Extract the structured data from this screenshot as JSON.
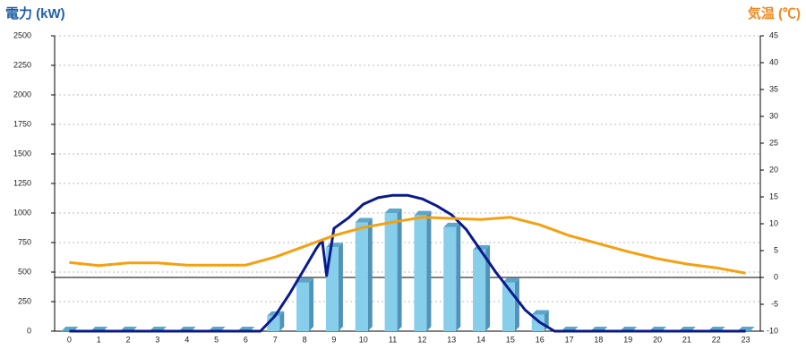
{
  "chart_data": {
    "type": "combo",
    "title": "電力 (kW)",
    "y2_title": "気温 (℃)",
    "title_color": "#1f5fa8",
    "y2_title_color": "#f08a24",
    "categories": [
      "0",
      "1",
      "2",
      "3",
      "4",
      "5",
      "6",
      "7",
      "8",
      "9",
      "10",
      "11",
      "12",
      "13",
      "14",
      "15",
      "16",
      "17",
      "18",
      "19",
      "20",
      "21",
      "22",
      "23"
    ],
    "ylim": [
      0,
      2500
    ],
    "yticks": [
      0,
      250,
      500,
      750,
      1000,
      1250,
      1500,
      1750,
      2000,
      2250,
      2500
    ],
    "y2lim": [
      -10,
      45
    ],
    "y2ticks": [
      -10,
      -5,
      0,
      5,
      10,
      15,
      20,
      25,
      30,
      35,
      40,
      45
    ],
    "grid": true,
    "y2_zero_line": true,
    "series": [
      {
        "type": "bar",
        "color": "#87ceeb",
        "values": [
          0,
          0,
          0,
          0,
          0,
          0,
          0,
          130,
          410,
          710,
          920,
          1000,
          980,
          880,
          690,
          410,
          140,
          0,
          0,
          0,
          0,
          0,
          0,
          0
        ]
      },
      {
        "type": "line",
        "color": "#0a1a8c",
        "x": [
          0,
          1,
          2,
          3,
          4,
          5,
          6,
          6.5,
          7,
          7.5,
          8,
          8.4,
          8.6,
          8.75,
          9,
          9.5,
          10,
          10.5,
          11,
          11.5,
          12,
          12.5,
          13,
          13.5,
          14,
          14.5,
          15,
          15.5,
          16,
          16.5,
          17,
          18,
          19,
          20,
          21,
          22,
          23
        ],
        "values": [
          0,
          0,
          0,
          0,
          0,
          0,
          0,
          0,
          130,
          320,
          530,
          700,
          770,
          470,
          870,
          960,
          1075,
          1130,
          1150,
          1150,
          1120,
          1060,
          985,
          860,
          680,
          500,
          340,
          180,
          75,
          0,
          0,
          0,
          0,
          0,
          0,
          0,
          0
        ]
      },
      {
        "type": "line",
        "axis": "y2",
        "color": "#f5a00f",
        "values": [
          2.8,
          2.2,
          2.7,
          2.7,
          2.3,
          2.3,
          2.3,
          3.8,
          5.8,
          7.8,
          9.3,
          10.3,
          11.2,
          11.0,
          10.8,
          11.2,
          9.8,
          7.8,
          6.3,
          4.8,
          3.5,
          2.5,
          1.8,
          0.8
        ]
      }
    ]
  }
}
